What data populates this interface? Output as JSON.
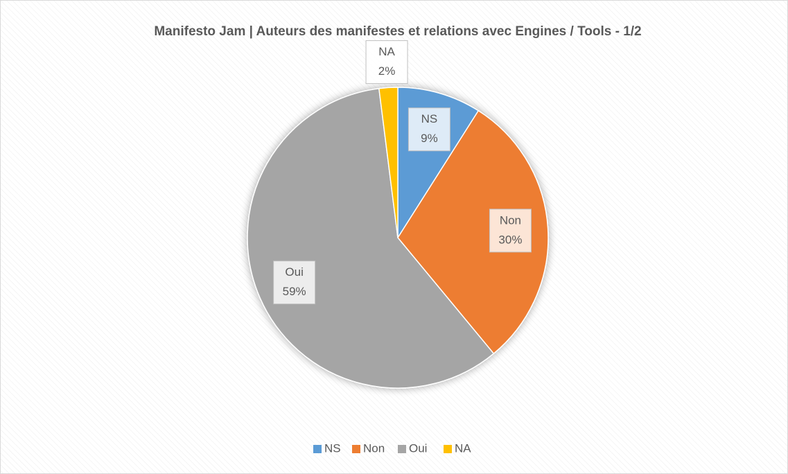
{
  "chart_data": {
    "type": "pie",
    "title": "Manifesto Jam | Auteurs des manifestes et relations avec Engines / Tools - 1/2",
    "categories": [
      "NS",
      "Non",
      "Oui",
      "NA"
    ],
    "values": [
      9,
      30,
      59,
      2
    ],
    "value_labels": [
      "9%",
      "30%",
      "59%",
      "2%"
    ],
    "colors": [
      "#5b9bd5",
      "#ed7d31",
      "#a5a5a5",
      "#ffc000"
    ],
    "legend": "bottom"
  }
}
